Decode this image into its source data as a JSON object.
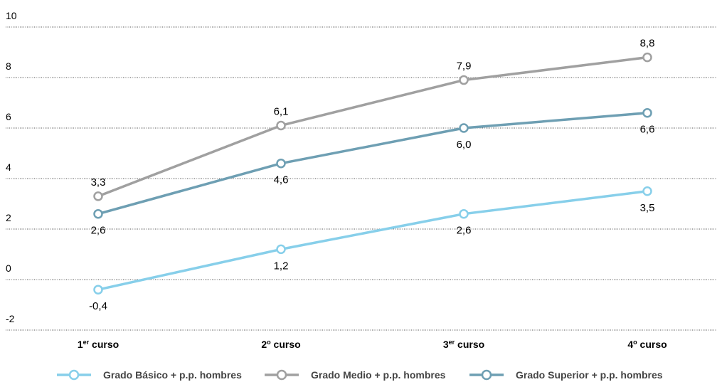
{
  "chart_data": {
    "type": "line",
    "categories": [
      "1er curso",
      "2o curso",
      "3er curso",
      "4o curso"
    ],
    "category_labels": [
      {
        "base": "1",
        "sup": "er",
        "rest": " curso"
      },
      {
        "base": "2",
        "sup": "o",
        "rest": " curso"
      },
      {
        "base": "3",
        "sup": "er",
        "rest": " curso"
      },
      {
        "base": "4",
        "sup": "o",
        "rest": " curso"
      }
    ],
    "ylim": [
      -2,
      10
    ],
    "yticks": [
      -2,
      0,
      2,
      4,
      6,
      8,
      10
    ],
    "grid": true,
    "legend_position": "bottom",
    "series": [
      {
        "name": "Grado Básico + p.p. hombres",
        "color": "#87cfea",
        "values": [
          -0.4,
          1.2,
          2.6,
          3.5
        ],
        "labels": [
          "-0,4",
          "1,2",
          "2,6",
          "3,5"
        ],
        "label_pos": [
          "below",
          "below",
          "below",
          "below"
        ]
      },
      {
        "name": "Grado Medio + p.p. hombres",
        "color": "#a0a0a0",
        "values": [
          3.3,
          6.1,
          7.9,
          8.8
        ],
        "labels": [
          "3,3",
          "6,1",
          "7,9",
          "8,8"
        ],
        "label_pos": [
          "above",
          "above",
          "above",
          "above"
        ]
      },
      {
        "name": "Grado Superior + p.p. hombres",
        "color": "#6e9fb3",
        "values": [
          2.6,
          4.6,
          6.0,
          6.6
        ],
        "labels": [
          "2,6",
          "4,6",
          "6,0",
          "6,6"
        ],
        "label_pos": [
          "below",
          "below",
          "below",
          "below"
        ]
      }
    ]
  }
}
